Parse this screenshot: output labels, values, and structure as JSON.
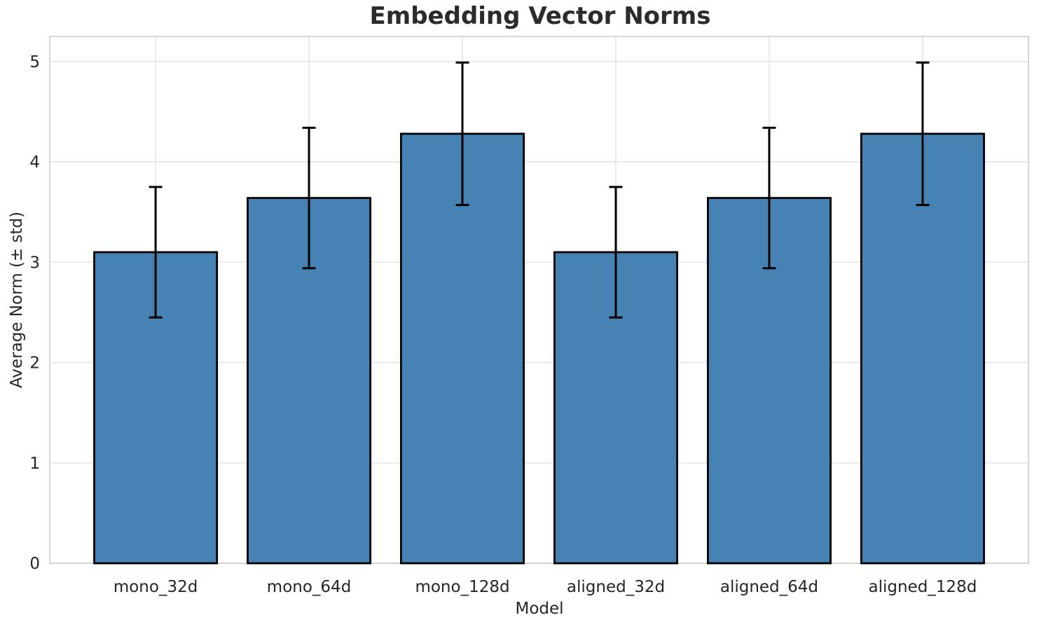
{
  "chart_data": {
    "type": "bar",
    "title": "Embedding Vector Norms",
    "xlabel": "Model",
    "ylabel": "Average Norm (± std)",
    "categories": [
      "mono_32d",
      "mono_64d",
      "mono_128d",
      "aligned_32d",
      "aligned_64d",
      "aligned_128d"
    ],
    "series": [
      {
        "name": "Average Norm",
        "values": [
          3.1,
          3.64,
          4.28,
          3.1,
          3.64,
          4.28
        ],
        "errors": [
          0.65,
          0.7,
          0.71,
          0.65,
          0.7,
          0.71
        ]
      }
    ],
    "yticks": [
      0,
      1,
      2,
      3,
      4,
      5
    ],
    "ylim": [
      0,
      5.25
    ],
    "xlim": [
      -0.69,
      5.69
    ],
    "bar_rel_width": 0.8,
    "grid": true,
    "legend": false,
    "colors": {
      "bar_fill": "#4682B4",
      "bar_edge": "#000000",
      "error_bar": "#000000",
      "grid": "#E7E7E7",
      "spine": "#CCCCCC",
      "tick_text": "#262626",
      "title_text": "#2B2B2B",
      "background": "#FFFFFF"
    }
  }
}
